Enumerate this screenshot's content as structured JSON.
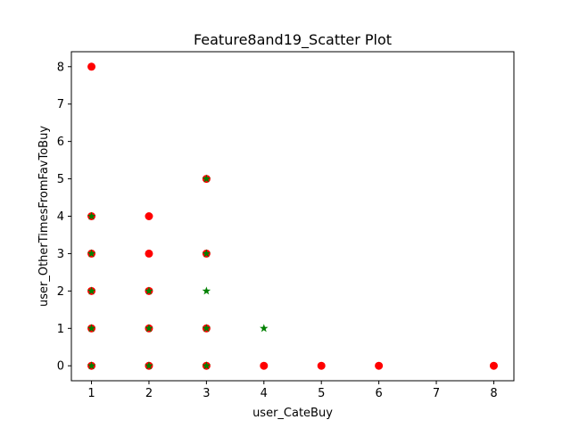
{
  "chart_data": {
    "type": "scatter",
    "title": "Feature8and19_Scatter Plot",
    "xlabel": "user_CateBuy",
    "ylabel": "user_OtherTimesFromFavToBuy",
    "xlim": [
      0.65,
      8.35
    ],
    "ylim": [
      -0.4,
      8.4
    ],
    "x_ticks": [
      1,
      2,
      3,
      4,
      5,
      6,
      7,
      8
    ],
    "y_ticks": [
      0,
      1,
      2,
      3,
      4,
      5,
      6,
      7,
      8
    ],
    "grid": false,
    "legend": false,
    "series": [
      {
        "marker": "circle",
        "color": "#ff0000",
        "points": [
          [
            1,
            8
          ],
          [
            1,
            4
          ],
          [
            1,
            3
          ],
          [
            1,
            2
          ],
          [
            1,
            1
          ],
          [
            1,
            0
          ],
          [
            2,
            4
          ],
          [
            2,
            3
          ],
          [
            2,
            2
          ],
          [
            2,
            1
          ],
          [
            2,
            0
          ],
          [
            3,
            5
          ],
          [
            3,
            3
          ],
          [
            3,
            1
          ],
          [
            3,
            0
          ],
          [
            4,
            0
          ],
          [
            5,
            0
          ],
          [
            6,
            0
          ],
          [
            8,
            0
          ]
        ]
      },
      {
        "marker": "star",
        "color": "#008000",
        "points": [
          [
            1,
            4
          ],
          [
            1,
            3
          ],
          [
            1,
            2
          ],
          [
            1,
            1
          ],
          [
            1,
            0
          ],
          [
            2,
            2
          ],
          [
            2,
            1
          ],
          [
            2,
            0
          ],
          [
            3,
            5
          ],
          [
            3,
            3
          ],
          [
            3,
            2
          ],
          [
            3,
            1
          ],
          [
            3,
            0
          ],
          [
            4,
            1
          ]
        ]
      }
    ]
  }
}
